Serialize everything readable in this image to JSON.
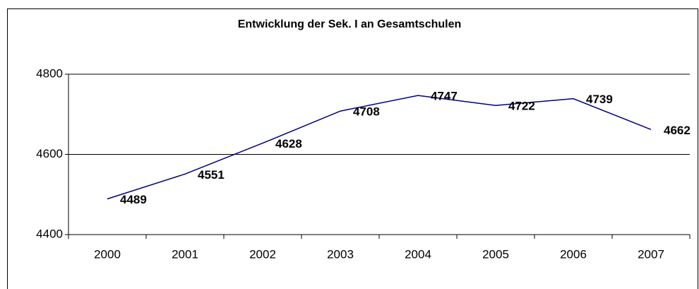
{
  "chart_data": {
    "type": "line",
    "title": "Entwicklung der Sek. I an Gesamtschulen",
    "categories": [
      "2000",
      "2001",
      "2002",
      "2003",
      "2004",
      "2005",
      "2006",
      "2007"
    ],
    "values": [
      4489,
      4551,
      4628,
      4708,
      4747,
      4722,
      4739,
      4662
    ],
    "color": "#000080",
    "ylim": [
      4400,
      4800
    ],
    "yticks": [
      4400,
      4600,
      4800
    ],
    "grid": true
  }
}
